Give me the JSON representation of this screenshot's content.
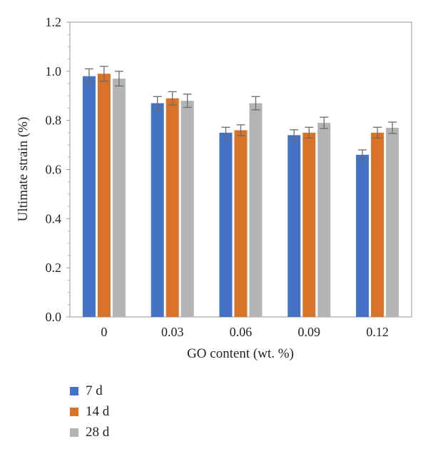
{
  "chart_data": {
    "type": "bar",
    "xlabel": "GO content (wt. %)",
    "ylabel": "Ultimate strain (%)",
    "categories": [
      "0",
      "0.03",
      "0.06",
      "0.09",
      "0.12"
    ],
    "ylim": [
      0.0,
      1.2
    ],
    "yticks": [
      "0.0",
      "0.2",
      "0.4",
      "0.6",
      "0.8",
      "1.0",
      "1.2"
    ],
    "grid": false,
    "legend_position": "bottom-left",
    "series": [
      {
        "name": "7 d",
        "color": "#4472C4",
        "values": [
          0.98,
          0.87,
          0.75,
          0.74,
          0.66
        ],
        "errors": [
          0.03,
          0.027,
          0.022,
          0.022,
          0.02
        ]
      },
      {
        "name": "14 d",
        "color": "#D97327",
        "values": [
          0.99,
          0.89,
          0.76,
          0.75,
          0.75
        ],
        "errors": [
          0.03,
          0.027,
          0.022,
          0.022,
          0.022
        ]
      },
      {
        "name": "28 d",
        "color": "#B4B4B4",
        "values": [
          0.97,
          0.88,
          0.87,
          0.79,
          0.77
        ],
        "errors": [
          0.03,
          0.027,
          0.027,
          0.023,
          0.023
        ]
      }
    ]
  }
}
